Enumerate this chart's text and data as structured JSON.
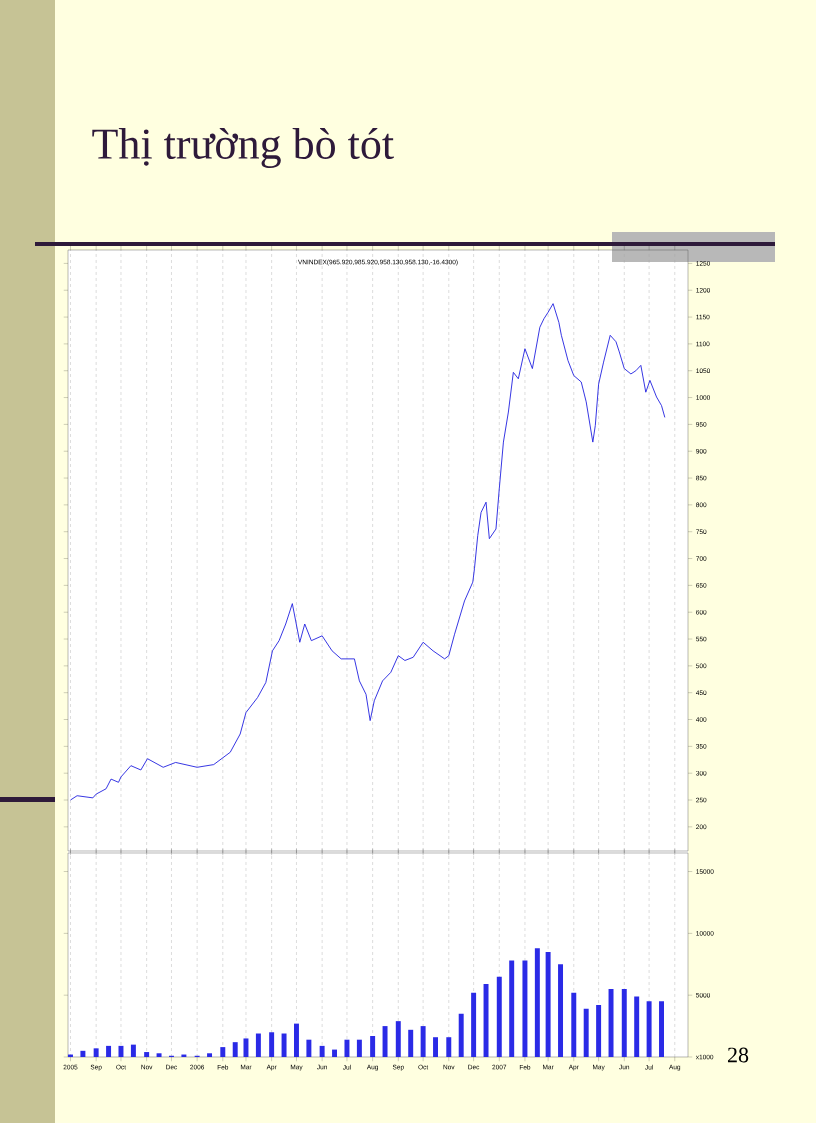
{
  "chart_data": [
    {
      "type": "line",
      "title": "Thị trường bò tót",
      "subtitle": "VNINDEX(965.920,985.920,958.130,958.130,-16.4300)",
      "series": [
        {
          "color": "#2020e0",
          "x": [
            "2005-08-01",
            "2005-08-09",
            "2005-08-28",
            "2005-09-01",
            "2005-09-13",
            "2005-09-19",
            "2005-09-28",
            "2005-10-01",
            "2005-10-13",
            "2005-10-25",
            "2005-11-02",
            "2005-11-21",
            "2005-12-06",
            "2006-01-01",
            "2006-01-21",
            "2006-02-10",
            "2006-02-22",
            "2006-03-01",
            "2006-03-15",
            "2006-03-25",
            "2006-04-02",
            "2006-04-10",
            "2006-04-18",
            "2006-04-26",
            "2006-05-05",
            "2006-05-11",
            "2006-05-19",
            "2006-06-01",
            "2006-06-13",
            "2006-06-24",
            "2006-07-10",
            "2006-07-16",
            "2006-07-24",
            "2006-07-29",
            "2006-08-03",
            "2006-08-13",
            "2006-08-23",
            "2006-09-01",
            "2006-09-09",
            "2006-09-19",
            "2006-10-01",
            "2006-10-13",
            "2006-10-27",
            "2006-11-01",
            "2006-11-08",
            "2006-11-20",
            "2006-11-30",
            "2006-12-02",
            "2006-12-06",
            "2006-12-10",
            "2006-12-16",
            "2006-12-20",
            "2006-12-28",
            "2007-01-01",
            "2007-01-06",
            "2007-01-12",
            "2007-01-18",
            "2007-01-24",
            "2007-02-01",
            "2007-02-10",
            "2007-02-19",
            "2007-02-24",
            "2007-03-01",
            "2007-03-07",
            "2007-03-14",
            "2007-03-17",
            "2007-03-25",
            "2007-04-01",
            "2007-04-10",
            "2007-04-16",
            "2007-04-24",
            "2007-04-27",
            "2007-05-01",
            "2007-05-07",
            "2007-05-15",
            "2007-05-22",
            "2007-05-26",
            "2007-06-01",
            "2007-06-09",
            "2007-06-15",
            "2007-06-21",
            "2007-06-27",
            "2007-07-02",
            "2007-07-10",
            "2007-07-16",
            "2007-07-20"
          ],
          "values": [
            250,
            258,
            254,
            261,
            271,
            289,
            283,
            293,
            314,
            306,
            327,
            311,
            320,
            311,
            316,
            339,
            373,
            413,
            441,
            469,
            528,
            547,
            578,
            616,
            544,
            578,
            547,
            556,
            528,
            513,
            513,
            472,
            447,
            398,
            435,
            472,
            488,
            519,
            510,
            516,
            544,
            528,
            513,
            519,
            559,
            621,
            656,
            681,
            743,
            786,
            805,
            737,
            755,
            830,
            917,
            973,
            1047,
            1035,
            1091,
            1054,
            1131,
            1147,
            1159,
            1175,
            1140,
            1116,
            1069,
            1041,
            1029,
            992,
            917,
            948,
            1025,
            1066,
            1116,
            1104,
            1085,
            1054,
            1044,
            1050,
            1060,
            1010,
            1032,
            1001,
            985,
            963
          ]
        }
      ],
      "xlim": [
        "2005-07-29",
        "2007-08-17"
      ],
      "xticks": [
        {
          "value": "2005-08-01",
          "label": null
        },
        {
          "value": "2005-09-01",
          "label": null
        },
        {
          "value": "2005-10-01",
          "label": null
        },
        {
          "value": "2005-11-01",
          "label": null
        },
        {
          "value": "2005-12-01",
          "label": null
        },
        {
          "value": "2006-01-01",
          "label": null
        },
        {
          "value": "2006-02-01",
          "label": null
        },
        {
          "value": "2006-03-01",
          "label": null
        },
        {
          "value": "2006-04-01",
          "label": null
        },
        {
          "value": "2006-05-01",
          "label": null
        },
        {
          "value": "2006-06-01",
          "label": null
        },
        {
          "value": "2006-07-01",
          "label": null
        },
        {
          "value": "2006-08-01",
          "label": null
        },
        {
          "value": "2006-09-01",
          "label": null
        },
        {
          "value": "2006-10-01",
          "label": null
        },
        {
          "value": "2006-11-01",
          "label": null
        },
        {
          "value": "2006-12-01",
          "label": null
        },
        {
          "value": "2007-01-01",
          "label": null
        },
        {
          "value": "2007-02-01",
          "label": null
        },
        {
          "value": "2007-03-01",
          "label": null
        },
        {
          "value": "2007-04-01",
          "label": null
        },
        {
          "value": "2007-05-01",
          "label": null
        },
        {
          "value": "2007-06-01",
          "label": null
        },
        {
          "value": "2007-07-01",
          "label": null
        },
        {
          "value": "2007-08-01",
          "label": null
        }
      ],
      "ylim": [
        155,
        1275
      ],
      "yticks": [
        200,
        250,
        300,
        350,
        400,
        450,
        500,
        550,
        600,
        650,
        700,
        750,
        800,
        850,
        900,
        950,
        1000,
        1050,
        1100,
        1150,
        1200,
        1250
      ],
      "grid": "x",
      "tick_labels": "y"
    },
    {
      "type": "bar",
      "annotations": [
        "28"
      ],
      "x": [
        "2005-08-01",
        "2005-08-16",
        "2005-09-01",
        "2005-09-16",
        "2005-10-01",
        "2005-10-16",
        "2005-11-01",
        "2005-11-16",
        "2005-12-01",
        "2005-12-16",
        "2006-01-01",
        "2006-01-16",
        "2006-02-01",
        "2006-02-16",
        "2006-03-01",
        "2006-03-16",
        "2006-04-01",
        "2006-04-16",
        "2006-05-01",
        "2006-05-16",
        "2006-06-01",
        "2006-06-16",
        "2006-07-01",
        "2006-07-16",
        "2006-08-01",
        "2006-08-16",
        "2006-09-01",
        "2006-09-16",
        "2006-10-01",
        "2006-10-16",
        "2006-11-01",
        "2006-11-16",
        "2006-12-01",
        "2006-12-16",
        "2007-01-01",
        "2007-01-16",
        "2007-02-01",
        "2007-02-16",
        "2007-03-01",
        "2007-03-16",
        "2007-04-01",
        "2007-04-16",
        "2007-05-01",
        "2007-05-16",
        "2007-06-01",
        "2007-06-16",
        "2007-07-01",
        "2007-07-16"
      ],
      "values": [
        200,
        500,
        700,
        900,
        900,
        1000,
        400,
        300,
        100,
        200,
        100,
        300,
        800,
        1200,
        1500,
        1900,
        2000,
        1900,
        2700,
        1400,
        900,
        600,
        1400,
        1400,
        1700,
        2500,
        2900,
        2200,
        2500,
        1600,
        1600,
        3500,
        5200,
        5900,
        6500,
        7800,
        7800,
        8800,
        8500,
        7500,
        5200,
        3900,
        4200,
        5500,
        5500,
        4900,
        4500,
        4500
      ],
      "color": "#2a2ae6",
      "xlim": [
        "2005-07-29",
        "2007-08-17"
      ],
      "xticks": [
        {
          "value": "2005-08-01",
          "label": "2005"
        },
        {
          "value": "2005-09-01",
          "label": "Sep"
        },
        {
          "value": "2005-10-01",
          "label": "Oct"
        },
        {
          "value": "2005-11-01",
          "label": "Nov"
        },
        {
          "value": "2005-12-01",
          "label": "Dec"
        },
        {
          "value": "2006-01-01",
          "label": "2006"
        },
        {
          "value": "2006-02-01",
          "label": "Feb"
        },
        {
          "value": "2006-03-01",
          "label": "Mar"
        },
        {
          "value": "2006-04-01",
          "label": "Apr"
        },
        {
          "value": "2006-05-01",
          "label": "May"
        },
        {
          "value": "2006-06-01",
          "label": "Jun"
        },
        {
          "value": "2006-07-01",
          "label": "Jul"
        },
        {
          "value": "2006-08-01",
          "label": "Aug"
        },
        {
          "value": "2006-09-01",
          "label": "Sep"
        },
        {
          "value": "2006-10-01",
          "label": "Oct"
        },
        {
          "value": "2006-11-01",
          "label": "Nov"
        },
        {
          "value": "2006-12-01",
          "label": "Dec"
        },
        {
          "value": "2007-01-01",
          "label": "2007"
        },
        {
          "value": "2007-02-01",
          "label": "Feb"
        },
        {
          "value": "2007-03-01",
          "label": "Mar"
        },
        {
          "value": "2007-04-01",
          "label": "Apr"
        },
        {
          "value": "2007-05-01",
          "label": "May"
        },
        {
          "value": "2007-06-01",
          "label": "Jun"
        },
        {
          "value": "2007-07-01",
          "label": "Jul"
        },
        {
          "value": "2007-08-01",
          "label": "Aug"
        }
      ],
      "ylim": [
        0,
        16500
      ],
      "yticks": [
        {
          "value": 0,
          "label": "x1000"
        },
        5000,
        10000,
        15000
      ],
      "grid": "x"
    }
  ]
}
